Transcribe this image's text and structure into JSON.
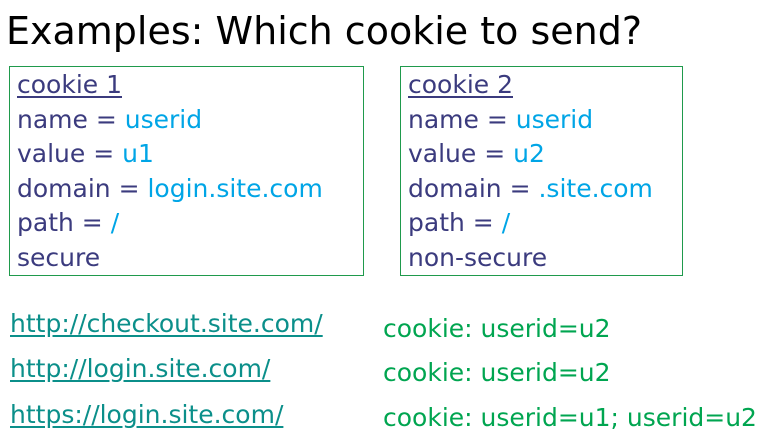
{
  "title": "Examples: Which cookie to send?",
  "cookies": [
    {
      "header": "cookie 1",
      "name_label": "name = ",
      "name_value": "userid",
      "value_label": "value = ",
      "value_value": "u1",
      "domain_label": "domain = ",
      "domain_value": "login.site.com",
      "path_label": "path = ",
      "path_value": "/",
      "security": "secure"
    },
    {
      "header": "cookie 2",
      "name_label": "name = ",
      "name_value": "userid",
      "value_label": "value = ",
      "value_value": "u2",
      "domain_label": "domain = ",
      "domain_value": ".site.com",
      "path_label": "path = ",
      "path_value": "/",
      "security": "non-secure"
    }
  ],
  "examples": [
    {
      "url": "http://checkout.site.com/",
      "result": "cookie: userid=u2"
    },
    {
      "url": "http://login.site.com/",
      "result": "cookie: userid=u2"
    },
    {
      "url": "https://login.site.com/",
      "result": "cookie: userid=u1; userid=u2"
    }
  ],
  "colors": {
    "box_border": "#1f9a4c",
    "label_text": "#3b3b7e",
    "value_text": "#00a5e6",
    "url_text": "#0b8f8a",
    "result_text": "#00a550"
  }
}
